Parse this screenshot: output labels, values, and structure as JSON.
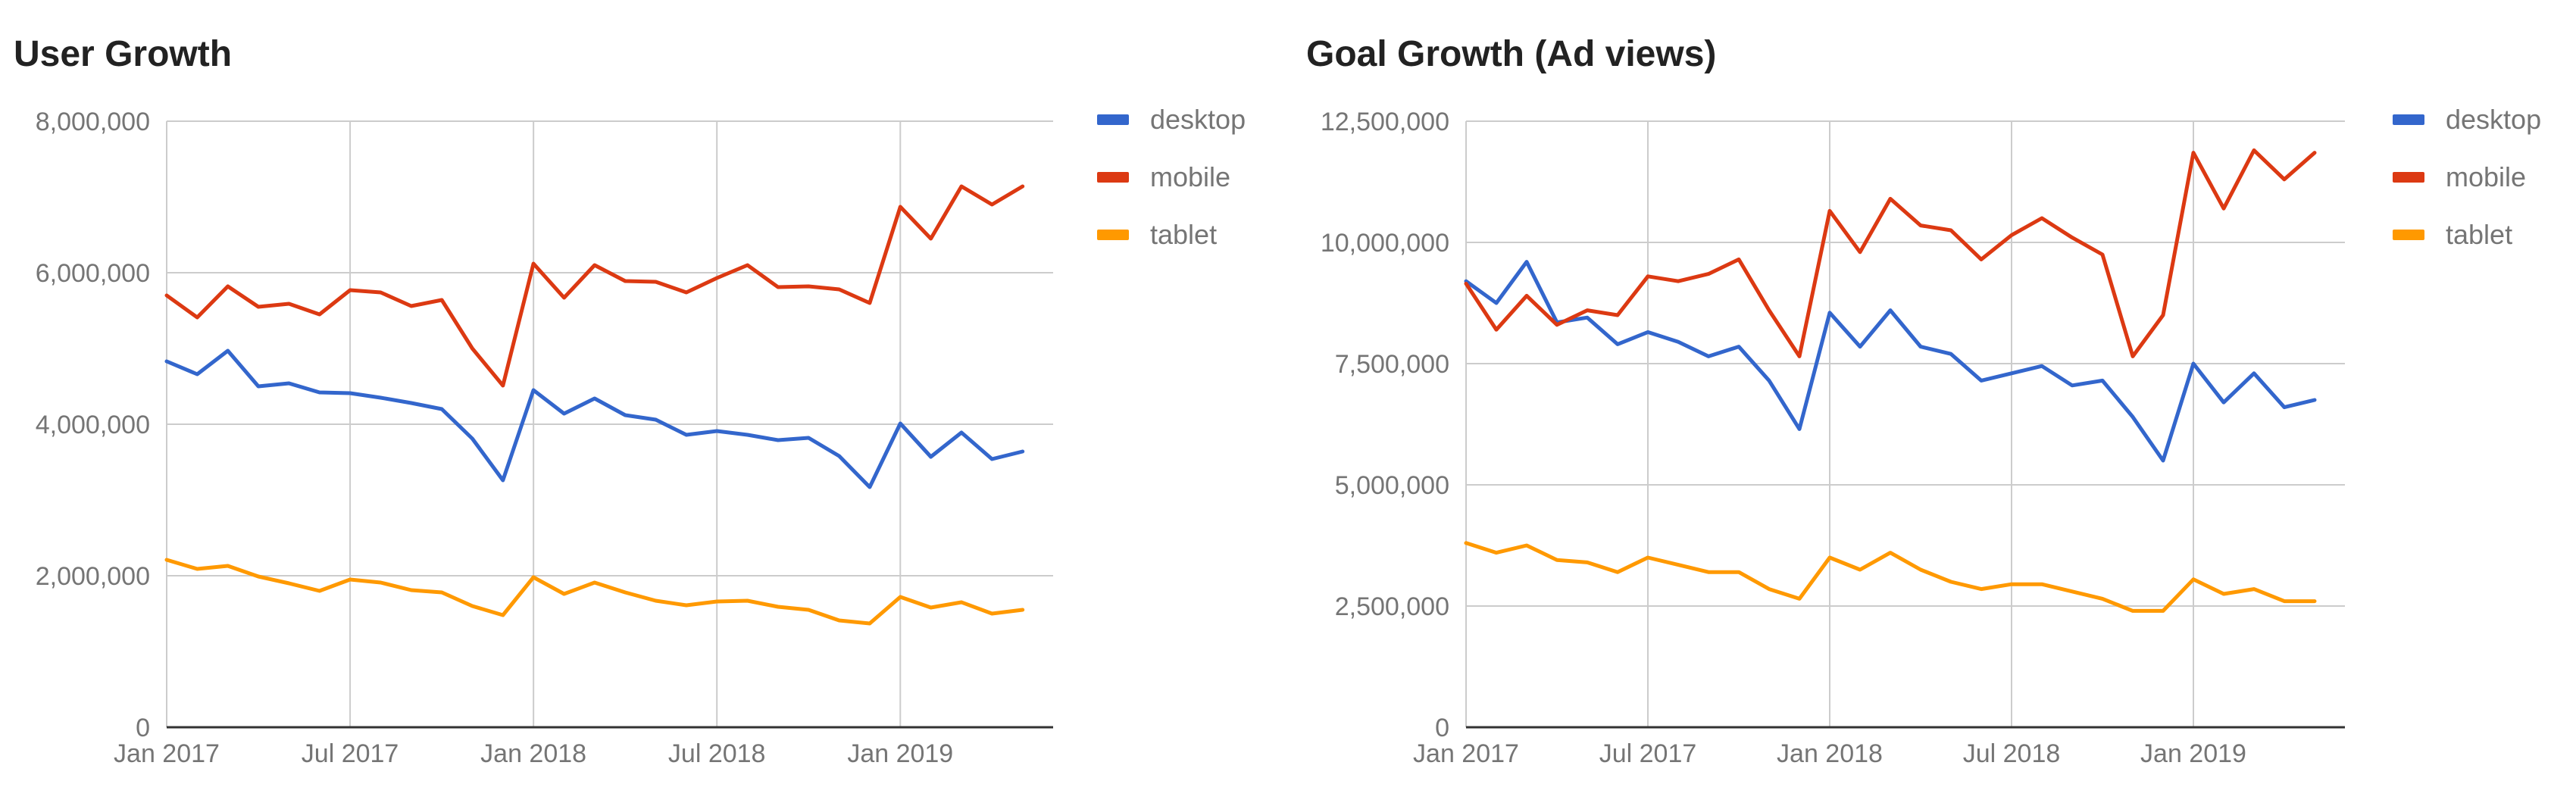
{
  "colors": {
    "desktop": "#3366cc",
    "mobile": "#dc3912",
    "tablet": "#ff9900",
    "grid": "#cccccc",
    "axis": "#333333",
    "label": "#757575"
  },
  "chart_data": [
    {
      "type": "line",
      "title": "User Growth",
      "title_suffix": "",
      "xlabel": "",
      "ylabel": "",
      "ylim": [
        0,
        8000000
      ],
      "y_ticks": [
        0,
        2000000,
        4000000,
        6000000,
        8000000
      ],
      "y_tick_labels": [
        "0",
        "2,000,000",
        "4,000,000",
        "6,000,000",
        "8,000,000"
      ],
      "x_ticks": [
        0,
        6,
        12,
        18,
        24
      ],
      "x_tick_labels": [
        "Jan 2017",
        "Jul 2017",
        "Jan 2018",
        "Jul 2018",
        "Jan 2019"
      ],
      "x_range": [
        0,
        29
      ],
      "legend_position": "right",
      "series": [
        {
          "name": "desktop",
          "values": [
            4830000,
            4660000,
            4970000,
            4500000,
            4540000,
            4420000,
            4410000,
            4350000,
            4280000,
            4200000,
            3810000,
            3260000,
            4450000,
            4140000,
            4340000,
            4120000,
            4060000,
            3860000,
            3910000,
            3860000,
            3790000,
            3820000,
            3580000,
            3170000,
            4010000,
            3570000,
            3890000,
            3540000,
            3640000
          ]
        },
        {
          "name": "mobile",
          "values": [
            5700000,
            5410000,
            5820000,
            5550000,
            5590000,
            5450000,
            5770000,
            5740000,
            5560000,
            5640000,
            5000000,
            4510000,
            6120000,
            5670000,
            6100000,
            5890000,
            5880000,
            5740000,
            5930000,
            6100000,
            5810000,
            5820000,
            5780000,
            5600000,
            6870000,
            6450000,
            7140000,
            6900000,
            7140000
          ]
        },
        {
          "name": "tablet",
          "values": [
            2210000,
            2090000,
            2130000,
            1990000,
            1900000,
            1800000,
            1950000,
            1910000,
            1810000,
            1780000,
            1600000,
            1480000,
            1980000,
            1760000,
            1910000,
            1780000,
            1670000,
            1610000,
            1660000,
            1670000,
            1590000,
            1550000,
            1410000,
            1370000,
            1720000,
            1580000,
            1650000,
            1500000,
            1550000
          ]
        }
      ]
    },
    {
      "type": "line",
      "title": "Goal Growth",
      "title_suffix": "(Ad views)",
      "xlabel": "",
      "ylabel": "",
      "ylim": [
        0,
        12500000
      ],
      "y_ticks": [
        0,
        2500000,
        5000000,
        7500000,
        10000000,
        12500000
      ],
      "y_tick_labels": [
        "0",
        "2,500,000",
        "5,000,000",
        "7,500,000",
        "10,000,000",
        "12,500,000"
      ],
      "x_ticks": [
        0,
        6,
        12,
        18,
        24
      ],
      "x_tick_labels": [
        "Jan 2017",
        "Jul 2017",
        "Jan 2018",
        "Jul 2018",
        "Jan 2019"
      ],
      "x_range": [
        0,
        29
      ],
      "legend_position": "right",
      "series": [
        {
          "name": "desktop",
          "values": [
            9200000,
            8750000,
            9600000,
            8350000,
            8450000,
            7900000,
            8150000,
            7950000,
            7650000,
            7850000,
            7150000,
            6150000,
            8550000,
            7850000,
            8600000,
            7850000,
            7700000,
            7150000,
            7300000,
            7450000,
            7050000,
            7150000,
            6400000,
            5500000,
            7500000,
            6700000,
            7300000,
            6600000,
            6750000
          ]
        },
        {
          "name": "mobile",
          "values": [
            9150000,
            8200000,
            8900000,
            8300000,
            8600000,
            8500000,
            9300000,
            9200000,
            9350000,
            9650000,
            8600000,
            7650000,
            10650000,
            9800000,
            10900000,
            10350000,
            10250000,
            9650000,
            10150000,
            10500000,
            10100000,
            9750000,
            7650000,
            8500000,
            11850000,
            10700000,
            11900000,
            11300000,
            11850000
          ]
        },
        {
          "name": "tablet",
          "values": [
            3800000,
            3600000,
            3750000,
            3450000,
            3400000,
            3200000,
            3500000,
            3350000,
            3200000,
            3200000,
            2850000,
            2650000,
            3500000,
            3250000,
            3600000,
            3250000,
            3000000,
            2850000,
            2950000,
            2950000,
            2800000,
            2650000,
            2400000,
            2400000,
            3050000,
            2750000,
            2850000,
            2600000,
            2600000
          ]
        }
      ]
    }
  ]
}
